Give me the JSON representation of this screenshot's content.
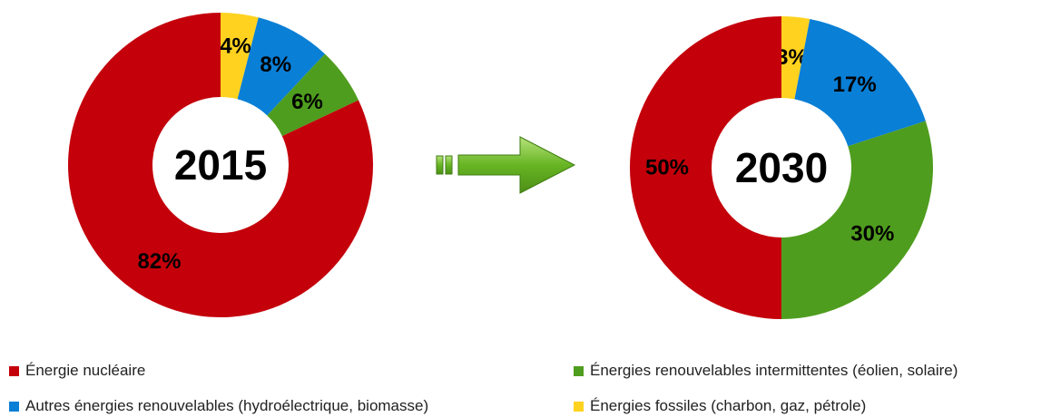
{
  "colors": {
    "nucleaire": "#c4000b",
    "autres_renouvelables": "#0a7fd6",
    "intermittentes": "#4f9d1e",
    "fossiles": "#ffd21f",
    "arrow": "#67b524"
  },
  "legend": [
    {
      "key": "nucleaire",
      "label": "Énergie nucléaire"
    },
    {
      "key": "intermittentes",
      "label": "Énergies renouvelables intermittentes (éolien, solaire)"
    },
    {
      "key": "autres_renouvelables",
      "label": "Autres énergies renouvelables (hydroélectrique, biomasse)"
    },
    {
      "key": "fossiles",
      "label": "Énergies fossiles (charbon, gaz, pétrole)"
    }
  ],
  "arrow": {
    "icon": "right-arrow-icon"
  },
  "chart_data": [
    {
      "type": "pie",
      "donut": true,
      "center_label": "2015",
      "slices": [
        {
          "key": "fossiles",
          "value": 4,
          "label": "4%"
        },
        {
          "key": "autres_renouvelables",
          "value": 8,
          "label": "8%"
        },
        {
          "key": "intermittentes",
          "value": 6,
          "label": "6%"
        },
        {
          "key": "nucleaire",
          "value": 82,
          "label": "82%"
        }
      ]
    },
    {
      "type": "pie",
      "donut": true,
      "center_label": "2030",
      "slices": [
        {
          "key": "fossiles",
          "value": 3,
          "label": "3%"
        },
        {
          "key": "autres_renouvelables",
          "value": 17,
          "label": "17%"
        },
        {
          "key": "intermittentes",
          "value": 30,
          "label": "30%"
        },
        {
          "key": "nucleaire",
          "value": 50,
          "label": "50%"
        }
      ]
    }
  ]
}
